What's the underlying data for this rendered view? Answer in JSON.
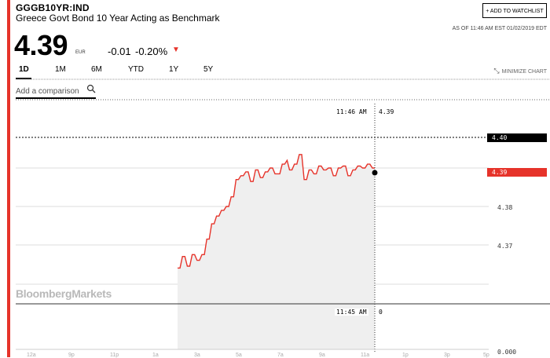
{
  "header": {
    "ticker": "GGGB10YR:IND",
    "name": "Greece Govt Bond 10 Year Acting as Benchmark",
    "watchlist_label": "+ ADD TO WATCHLIST",
    "as_of": "AS OF 11:46 AM EST 01/02/2019 EDT"
  },
  "quote": {
    "price": "4.39",
    "currency": "EUR",
    "change": "-0.01",
    "change_pct": "-0.20%",
    "direction_icon": "down-triangle-icon",
    "down_color": "#e6332a"
  },
  "tabs": [
    "1D",
    "1M",
    "6M",
    "YTD",
    "1Y",
    "5Y"
  ],
  "active_tab": "1D",
  "minimize_label": "MINIMIZE CHART",
  "comparison": {
    "placeholder": "Add a comparison"
  },
  "watermark": "BloombergMarkets",
  "crosshair": {
    "top_label_time": "11:46 AM",
    "top_label_value": "4.39",
    "bottom_label_time": "11:45 AM",
    "bottom_label_value": "0"
  },
  "y_tags": {
    "high": "4.40",
    "current": "4.39"
  },
  "chart_data": {
    "type": "area",
    "y_tick_labels": [
      "4.38",
      "4.37",
      "0.000"
    ],
    "x_tick_labels": [
      "12a",
      "9p",
      "11p",
      "1a",
      "3a",
      "5a",
      "7a",
      "9a",
      "11a",
      "1p",
      "3p",
      "5p"
    ],
    "line_color": "#e6332a",
    "fill_color": "#efefef",
    "ylim": [
      4.3625,
      4.4025
    ],
    "series": [
      {
        "x": [
          "",
          "",
          "",
          "",
          "",
          "",
          "",
          "",
          "",
          "",
          "",
          "",
          "",
          "",
          "",
          "",
          "",
          "",
          "",
          "",
          "",
          "",
          "",
          "",
          "",
          "",
          "",
          "",
          "",
          "",
          "",
          "",
          "",
          "",
          "",
          "",
          "",
          "",
          "",
          "",
          "",
          "",
          "",
          "",
          "",
          "",
          "",
          "",
          "",
          "",
          "",
          "",
          "",
          "",
          "",
          "",
          "",
          "",
          "",
          "",
          "",
          "",
          "",
          "",
          "",
          "",
          "",
          "",
          "",
          "",
          "",
          "",
          "",
          "",
          "",
          "",
          "",
          "",
          "",
          "",
          "",
          ""
        ],
        "values": [
          4.364,
          4.364,
          4.367,
          4.367,
          4.3645,
          4.3645,
          4.3675,
          4.3675,
          4.366,
          4.366,
          4.3675,
          4.3675,
          4.3715,
          4.3715,
          4.3755,
          4.3755,
          4.3775,
          4.3775,
          4.379,
          4.379,
          4.38,
          4.38,
          4.3825,
          4.3825,
          4.387,
          4.387,
          4.388,
          4.388,
          4.389,
          4.389,
          4.3865,
          4.3865,
          4.3895,
          4.3895,
          4.3875,
          4.3875,
          4.389,
          4.389,
          4.39,
          4.39,
          4.3885,
          4.3885,
          4.3885,
          4.391,
          4.391,
          4.392,
          4.3895,
          4.3895,
          4.391,
          4.391,
          4.3935,
          4.3935,
          4.387,
          4.387,
          4.3895,
          4.3895,
          4.3885,
          4.3885,
          4.3905,
          4.3905,
          4.3895,
          4.3895,
          4.39,
          4.39,
          4.388,
          4.388,
          4.39,
          4.39,
          4.3905,
          4.3905,
          4.388,
          4.388,
          4.3895,
          4.3895,
          4.3905,
          4.3905,
          4.39,
          4.39,
          4.391,
          4.391,
          4.39,
          4.39
        ]
      }
    ]
  }
}
